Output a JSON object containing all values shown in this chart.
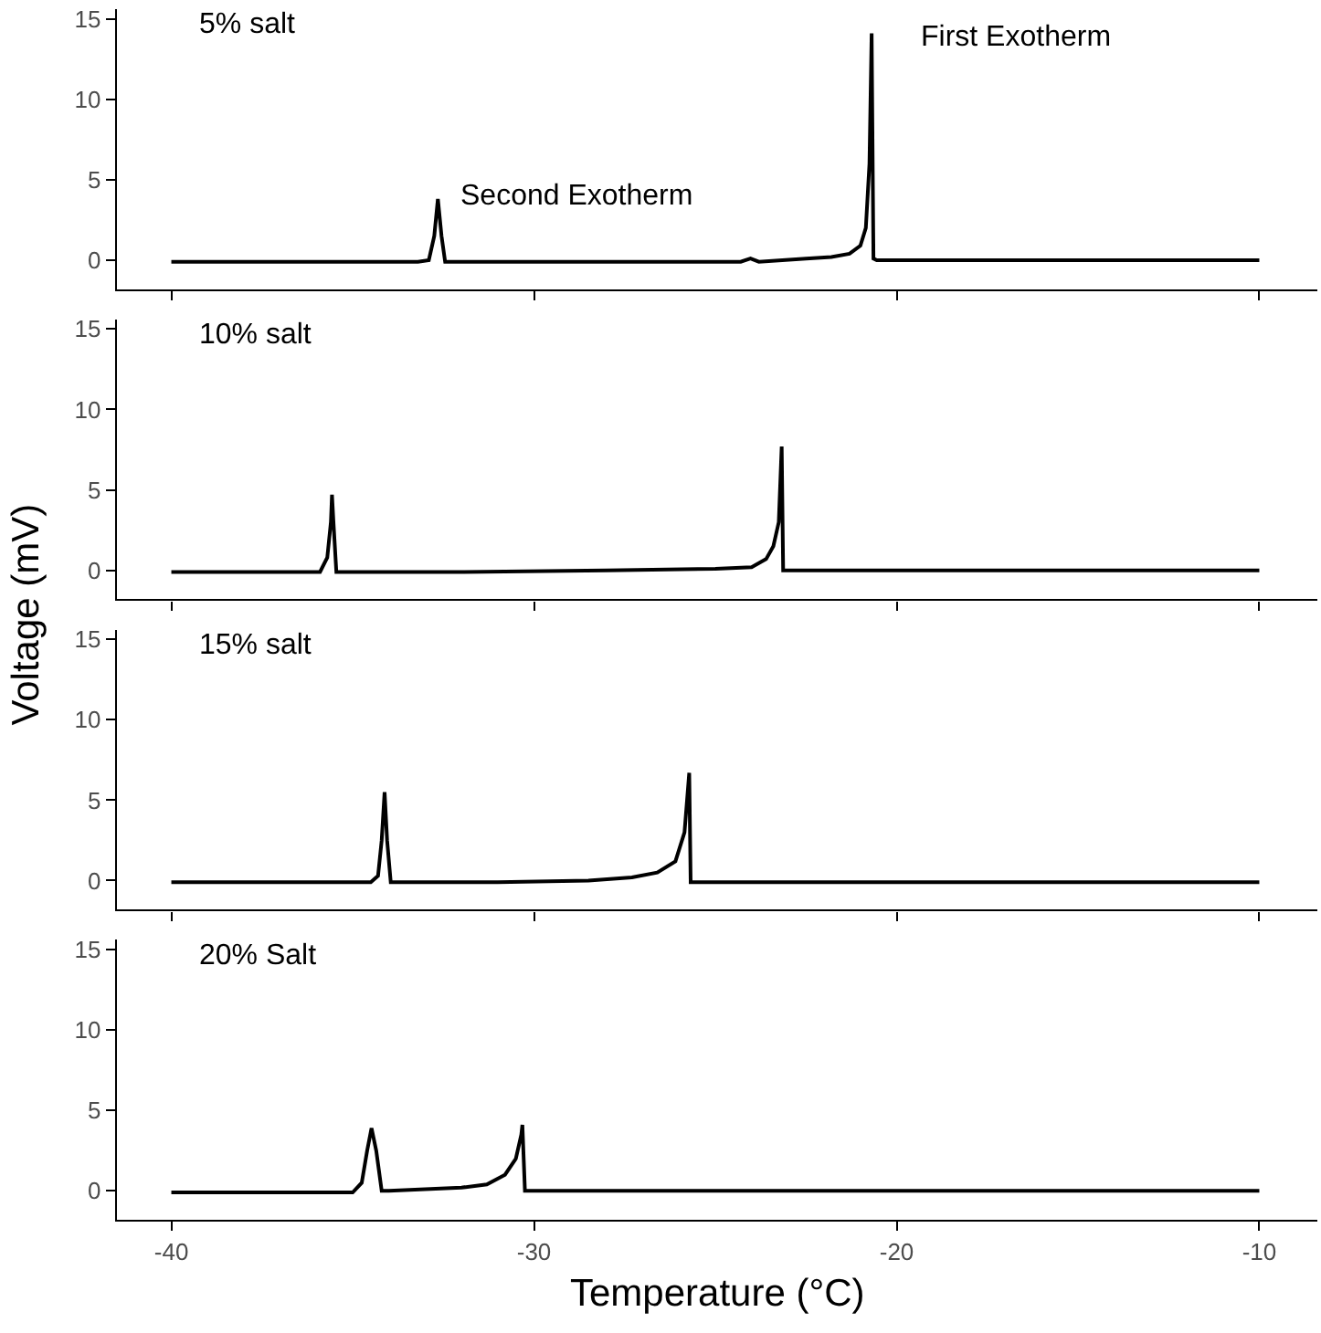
{
  "chart_data": [
    {
      "type": "line",
      "title": "5% salt",
      "ylabel": "Voltage (mV)",
      "xlim": [
        -41.5,
        -8.4
      ],
      "xticks": [
        -40,
        -30,
        -20,
        -10
      ],
      "ylim": [
        -1.8,
        15.6
      ],
      "yticks": [
        0,
        5,
        10,
        15
      ],
      "tick_labels": "y",
      "marker": "none",
      "line_style": "solid",
      "annotations": [
        "Second Exotherm",
        "First Exotherm"
      ],
      "series": [
        {
          "color": "#000000",
          "x": [
            -40,
            -36,
            -33.2,
            -32.9,
            -32.75,
            -32.65,
            -32.55,
            -32.45,
            -32.2,
            -29,
            -26,
            -24.3,
            -24.03,
            -23.8,
            -22.5,
            -21.8,
            -21.3,
            -21.0,
            -20.85,
            -20.75,
            -20.69,
            -20.64,
            -20.55,
            -19,
            -15,
            -10
          ],
          "values": [
            -0.1,
            -0.1,
            -0.1,
            0.0,
            1.5,
            3.8,
            1.5,
            -0.1,
            -0.1,
            -0.1,
            -0.1,
            -0.1,
            0.1,
            -0.1,
            0.1,
            0.2,
            0.4,
            0.9,
            2.0,
            6.0,
            14.1,
            0.1,
            0.0,
            0.0,
            0.0,
            0.0
          ]
        }
      ]
    },
    {
      "type": "line",
      "title": "10% salt",
      "xlim": [
        -41.5,
        -8.4
      ],
      "xticks": [
        -40,
        -30,
        -20,
        -10
      ],
      "ylim": [
        -1.8,
        15.6
      ],
      "yticks": [
        0,
        5,
        10,
        15
      ],
      "tick_labels": "y",
      "marker": "none",
      "line_style": "solid",
      "series": [
        {
          "color": "#000000",
          "x": [
            -40,
            -37,
            -35.9,
            -35.7,
            -35.6,
            -35.57,
            -35.53,
            -35.45,
            -35.3,
            -32,
            -28,
            -25,
            -24.0,
            -23.6,
            -23.4,
            -23.25,
            -23.17,
            -23.13,
            -23.05,
            -20,
            -15,
            -10
          ],
          "values": [
            -0.1,
            -0.1,
            -0.1,
            0.8,
            3.0,
            4.7,
            3.0,
            -0.1,
            -0.1,
            -0.1,
            0.0,
            0.1,
            0.2,
            0.7,
            1.5,
            3.0,
            7.7,
            0.0,
            0.0,
            0.0,
            0.0,
            0.0
          ]
        }
      ]
    },
    {
      "type": "line",
      "title": "15% salt",
      "xlim": [
        -41.5,
        -8.4
      ],
      "xticks": [
        -40,
        -30,
        -20,
        -10
      ],
      "ylim": [
        -1.8,
        15.6
      ],
      "yticks": [
        0,
        5,
        10,
        15
      ],
      "tick_labels": "y",
      "marker": "none",
      "line_style": "solid",
      "series": [
        {
          "color": "#000000",
          "x": [
            -40,
            -36,
            -34.5,
            -34.3,
            -34.2,
            -34.12,
            -34.05,
            -33.95,
            -33.8,
            -31,
            -28.5,
            -27.3,
            -26.6,
            -26.1,
            -25.85,
            -25.72,
            -25.68,
            -25.6,
            -22,
            -15,
            -10
          ],
          "values": [
            -0.1,
            -0.1,
            -0.1,
            0.3,
            2.5,
            5.5,
            2.5,
            -0.1,
            -0.1,
            -0.1,
            0.0,
            0.2,
            0.5,
            1.2,
            3.0,
            6.7,
            -0.1,
            -0.1,
            -0.1,
            -0.1,
            -0.1
          ]
        }
      ]
    },
    {
      "type": "line",
      "title": "20% Salt",
      "xlabel": "Temperature (°C)",
      "xlim": [
        -41.5,
        -8.4
      ],
      "xticks": [
        -40,
        -30,
        -20,
        -10
      ],
      "ylim": [
        -1.8,
        15.6
      ],
      "yticks": [
        0,
        5,
        10,
        15
      ],
      "marker": "none",
      "line_style": "solid",
      "series": [
        {
          "color": "#000000",
          "x": [
            -40,
            -36,
            -35.0,
            -34.75,
            -34.6,
            -34.48,
            -34.35,
            -34.2,
            -34.0,
            -33,
            -32,
            -31.3,
            -30.8,
            -30.5,
            -30.35,
            -30.32,
            -30.25,
            -30.1,
            -25,
            -15,
            -10
          ],
          "values": [
            -0.1,
            -0.1,
            -0.1,
            0.5,
            2.5,
            3.9,
            2.5,
            0.0,
            0.0,
            0.1,
            0.2,
            0.4,
            1.0,
            2.0,
            3.5,
            4.1,
            0.0,
            0.0,
            0.0,
            0.0,
            0.0
          ]
        }
      ]
    }
  ]
}
